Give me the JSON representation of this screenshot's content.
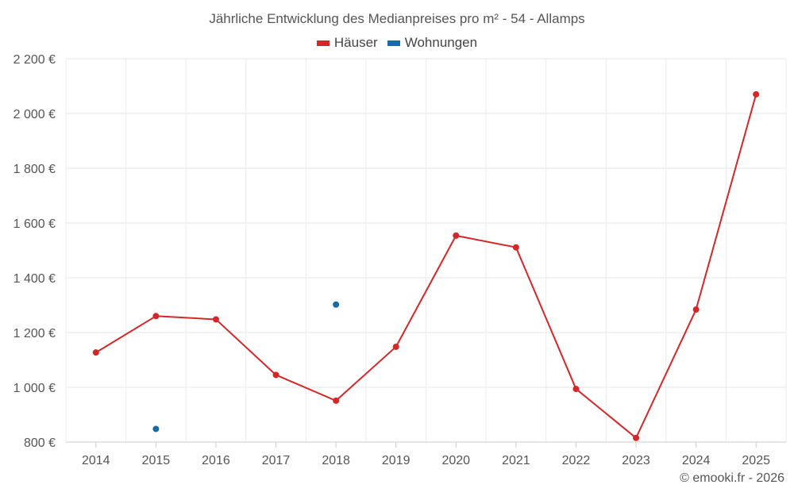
{
  "chart_data": {
    "type": "line",
    "title": "Jährliche Entwicklung des Medianpreises pro m² - 54 - Allamps",
    "categories": [
      "2014",
      "2015",
      "2016",
      "2017",
      "2018",
      "2019",
      "2020",
      "2021",
      "2022",
      "2023",
      "2024",
      "2025"
    ],
    "series": [
      {
        "name": "Häuser",
        "color": "#d62728",
        "values": [
          1127,
          1260,
          1248,
          1045,
          951,
          1148,
          1554,
          1511,
          994,
          815,
          1284,
          2070
        ]
      },
      {
        "name": "Wohnungen",
        "color": "#1a6aa6",
        "values": [
          null,
          848,
          null,
          null,
          1302,
          null,
          null,
          null,
          null,
          null,
          null,
          null
        ]
      }
    ],
    "ylim": [
      800,
      2200
    ],
    "yticks": [
      800,
      1000,
      1200,
      1400,
      1600,
      1800,
      2000,
      2200
    ],
    "ytick_labels": [
      "800 €",
      "1 000 €",
      "1 200 €",
      "1 400 €",
      "1 600 €",
      "1 800 €",
      "2 000 €",
      "2 200 €"
    ],
    "grid": true,
    "legend_position": "top-center"
  },
  "credit": "© emooki.fr - 2026"
}
